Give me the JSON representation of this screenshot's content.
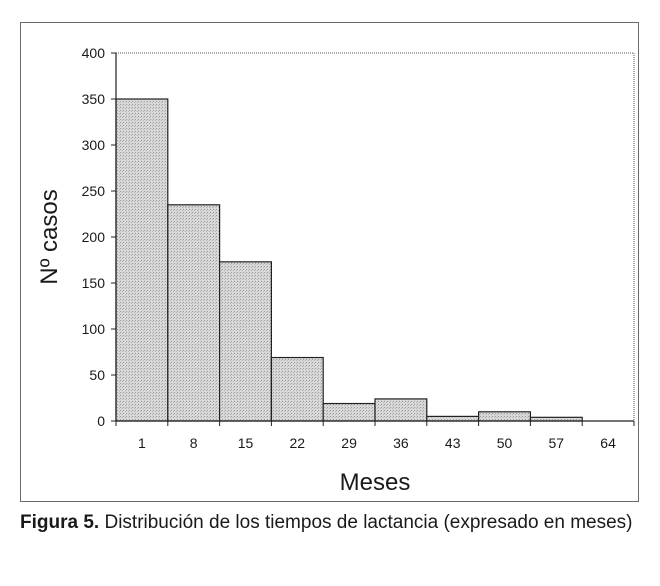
{
  "chart_data": {
    "type": "bar",
    "categories": [
      "1",
      "8",
      "15",
      "22",
      "29",
      "36",
      "43",
      "50",
      "57",
      "64"
    ],
    "values": [
      350,
      235,
      173,
      69,
      19,
      24,
      5,
      10,
      4,
      0
    ],
    "xlabel": "Meses",
    "ylabel": "Nº casos",
    "ylim": [
      0,
      400
    ],
    "yticks": [
      0,
      50,
      100,
      150,
      200,
      250,
      300,
      350,
      400
    ],
    "grid": false,
    "legend": "none",
    "bar_fill": "#d9d9d9",
    "bar_stroke": "#222222"
  },
  "caption": {
    "label": "Figura 5.",
    "text": " Distribución de los tiempos de lactancia (expresado en meses)"
  }
}
